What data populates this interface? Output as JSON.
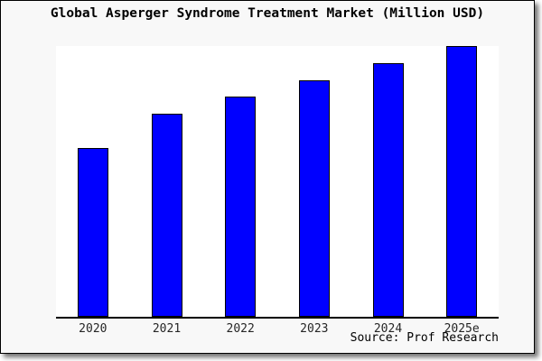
{
  "window": {
    "background_color": "#f8f8f8",
    "border_color": "#000000",
    "shadow_color": "#999999"
  },
  "chart_data": {
    "type": "bar",
    "title": "Global Asperger Syndrome Treatment Market (Million USD)",
    "categories": [
      "2020",
      "2021",
      "2022",
      "2023",
      "2024",
      "2025e"
    ],
    "values": [
      100,
      120,
      130,
      140,
      150,
      160
    ],
    "y_axis_visible": false,
    "ylim_estimated": [
      0,
      160
    ],
    "xlabel": "",
    "ylabel": "",
    "grid": false,
    "legend": null,
    "bar_color": "#0000ff",
    "bar_border_color": "#000000",
    "plot_background": "#ffffff",
    "source_label": "Source: Prof Research"
  }
}
